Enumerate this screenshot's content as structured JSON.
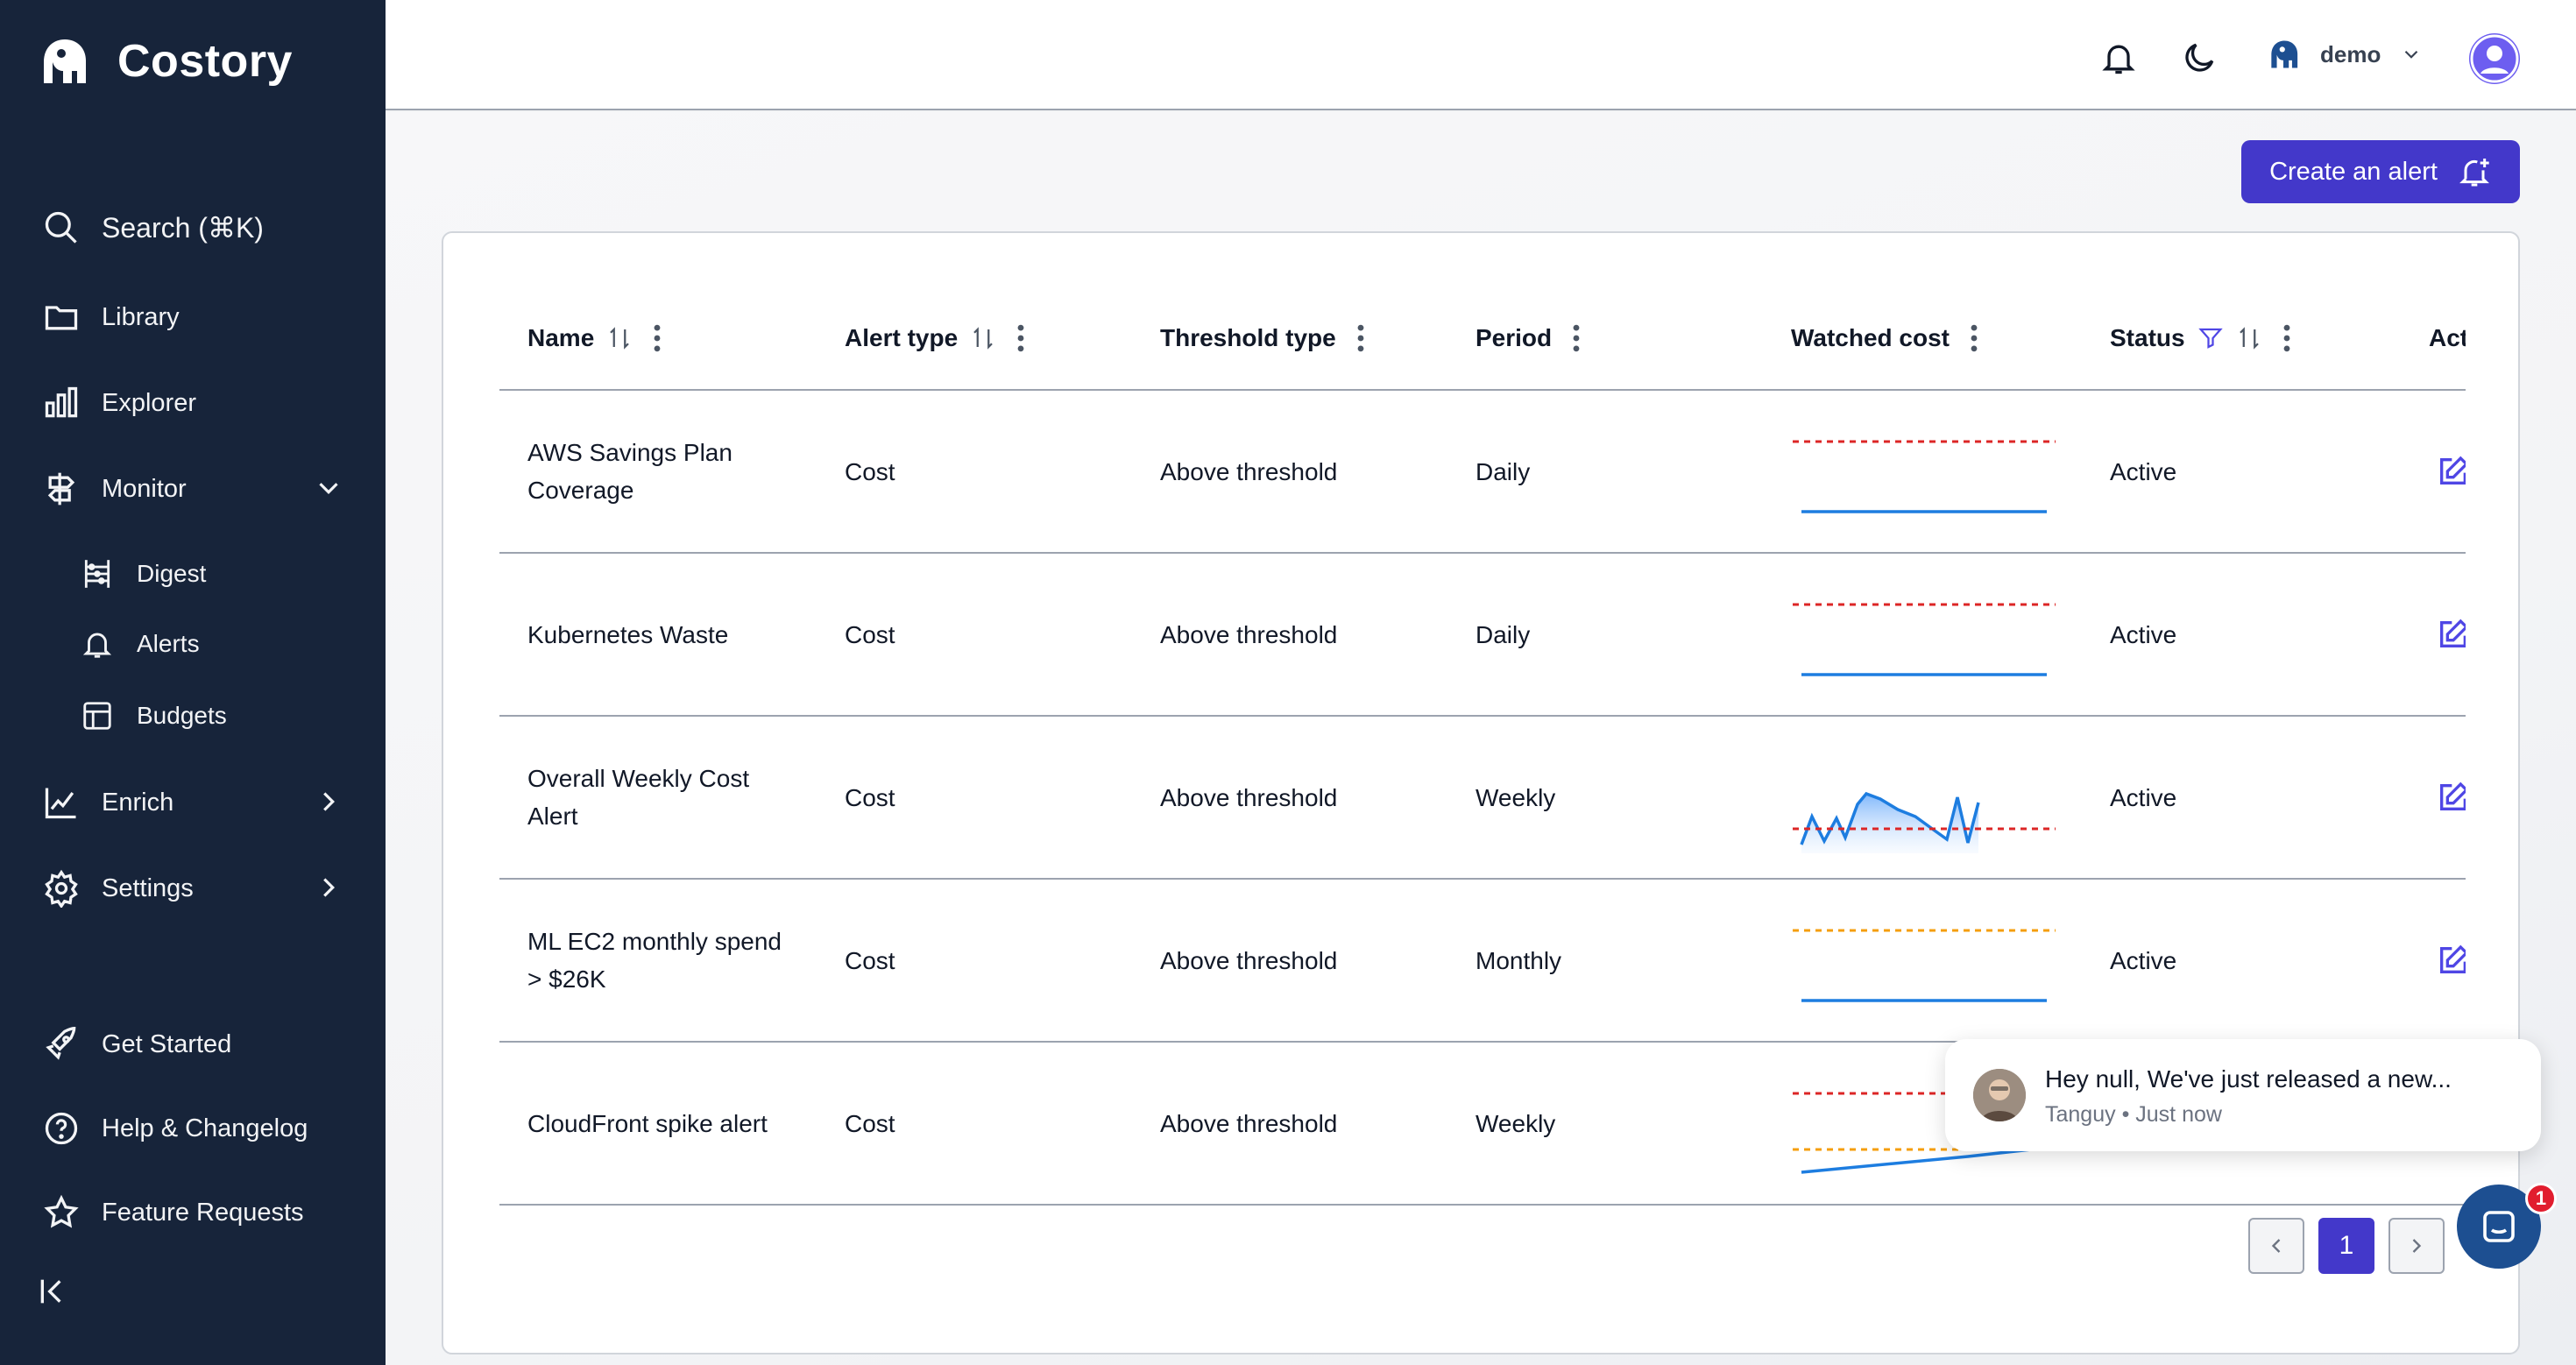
{
  "brand": {
    "name": "Costory",
    "logo_icon": "elephant-icon"
  },
  "sidebar": {
    "search_label": "Search (⌘K)",
    "items": [
      {
        "label": "Library",
        "icon": "folder-icon"
      },
      {
        "label": "Explorer",
        "icon": "bar-chart-icon"
      },
      {
        "label": "Monitor",
        "icon": "signpost-icon"
      },
      {
        "label": "Digest",
        "icon": "abacus-icon"
      },
      {
        "label": "Alerts",
        "icon": "bell-icon"
      },
      {
        "label": "Budgets",
        "icon": "table-icon"
      },
      {
        "label": "Enrich",
        "icon": "line-chart-icon"
      },
      {
        "label": "Settings",
        "icon": "gear-icon"
      }
    ],
    "footer": [
      {
        "label": "Get Started",
        "icon": "rocket-icon"
      },
      {
        "label": "Help & Changelog",
        "icon": "help-circle-icon"
      },
      {
        "label": "Feature Requests",
        "icon": "star-icon"
      }
    ]
  },
  "topbar": {
    "org_name": "demo"
  },
  "create_button": {
    "label": "Create an alert"
  },
  "table": {
    "columns": [
      "Name",
      "Alert type",
      "Threshold type",
      "Period",
      "Watched cost",
      "Status",
      "Act"
    ],
    "rows": [
      {
        "name": "AWS Savings Plan Coverage",
        "alert_type": "Cost",
        "threshold_type": "Above threshold",
        "period": "Daily",
        "status": "Active",
        "threshold_color": "#dc2626"
      },
      {
        "name": "Kubernetes Waste",
        "alert_type": "Cost",
        "threshold_type": "Above threshold",
        "period": "Daily",
        "status": "Active",
        "threshold_color": "#dc2626"
      },
      {
        "name": "Overall Weekly Cost Alert",
        "alert_type": "Cost",
        "threshold_type": "Above threshold",
        "period": "Weekly",
        "status": "Active",
        "threshold_color": "#dc2626"
      },
      {
        "name": "ML EC2 monthly spend > $26K",
        "alert_type": "Cost",
        "threshold_type": "Above threshold",
        "period": "Monthly",
        "status": "Active",
        "threshold_color": "#f59e0b"
      },
      {
        "name": "CloudFront spike alert",
        "alert_type": "Cost",
        "threshold_type": "Above threshold",
        "period": "Weekly",
        "status": "",
        "threshold_color": "#dc2626"
      }
    ]
  },
  "pagination": {
    "current_page": "1"
  },
  "chat": {
    "message": "Hey null, We've just released a new...",
    "sender": "Tanguy",
    "time": "Just now",
    "unread_count": "1"
  },
  "colors": {
    "sidebar_bg": "#17243a",
    "accent": "#4338ca",
    "line_blue": "#1d7de0"
  }
}
